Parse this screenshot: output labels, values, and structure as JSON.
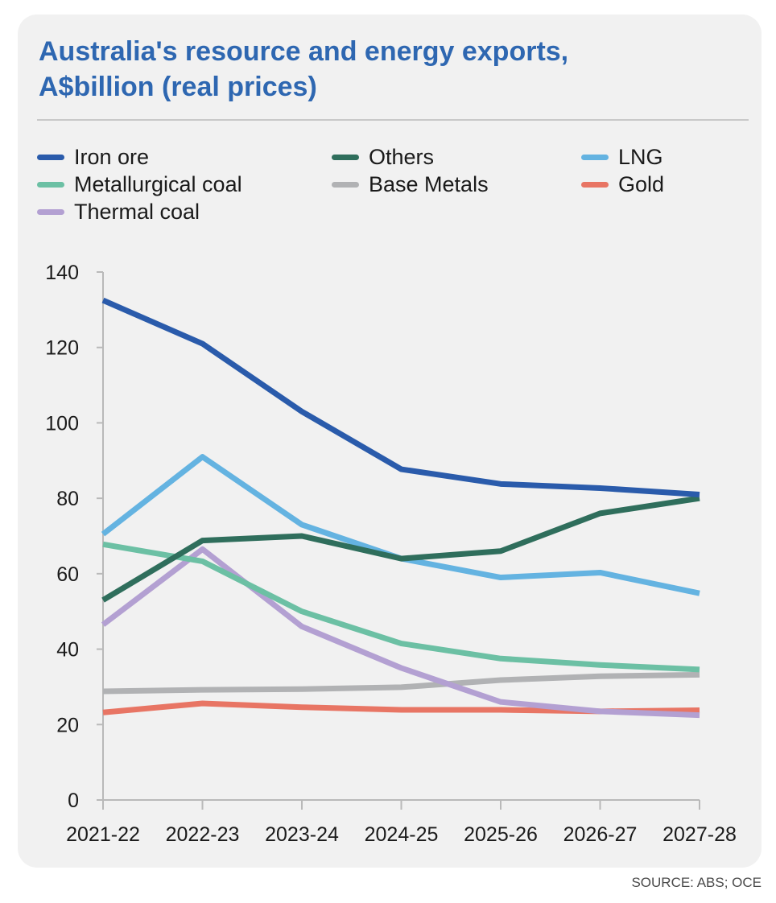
{
  "title_line1": "Australia's resource and energy exports,",
  "title_line2": "A$billion (real prices)",
  "source": "SOURCE: ABS; OCE",
  "chart_data": {
    "type": "line",
    "title": "Australia's resource and energy exports, A$billion (real prices)",
    "xlabel": "",
    "ylabel": "",
    "categories": [
      "2021-22",
      "2022-23",
      "2023-24",
      "2024-25",
      "2025-26",
      "2026-27",
      "2027-28"
    ],
    "ylim": [
      0,
      140
    ],
    "yticks": [
      0,
      20,
      40,
      60,
      80,
      100,
      120,
      140
    ],
    "grid": false,
    "legend_position": "top",
    "series": [
      {
        "name": "Iron ore",
        "color": "#2a5bab",
        "values": [
          132.5,
          121,
          103,
          87.7,
          83.8,
          82.7,
          81
        ]
      },
      {
        "name": "Others",
        "color": "#2f6e5c",
        "values": [
          53,
          68.8,
          70,
          64,
          66,
          76,
          80
        ]
      },
      {
        "name": "LNG",
        "color": "#64b3e1",
        "values": [
          70.5,
          91,
          73,
          64,
          59,
          60.3,
          54.8
        ]
      },
      {
        "name": "Metallurgical coal",
        "color": "#6cc0a4",
        "values": [
          67.8,
          63.3,
          50,
          41.5,
          37.5,
          35.8,
          34.6
        ]
      },
      {
        "name": "Base Metals",
        "color": "#b1b2b4",
        "values": [
          28.8,
          29.2,
          29.4,
          29.9,
          31.8,
          32.8,
          33.2
        ]
      },
      {
        "name": "Gold",
        "color": "#e87564",
        "values": [
          23.2,
          25.6,
          24.6,
          23.9,
          23.9,
          23.5,
          23.8
        ]
      },
      {
        "name": "Thermal coal",
        "color": "#b3a0d2",
        "values": [
          46.5,
          66.5,
          46,
          35,
          26,
          23.5,
          22.5
        ]
      }
    ]
  }
}
